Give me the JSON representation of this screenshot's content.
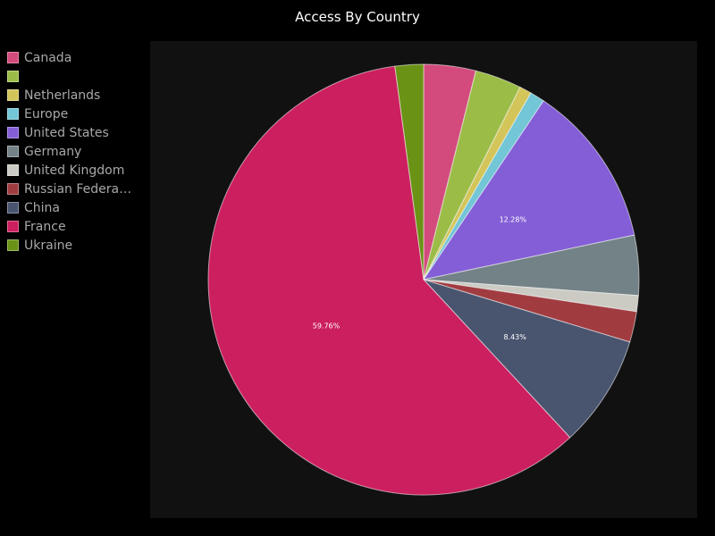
{
  "chart_data": {
    "type": "pie",
    "title": "Access By Country",
    "legend_position": "left",
    "slices": [
      {
        "label": "Canada",
        "value": 3.9,
        "color": "#d24b7c"
      },
      {
        "label": "",
        "value": 3.5,
        "color": "#9bbd48"
      },
      {
        "label": "Netherlands",
        "value": 0.9,
        "color": "#d4c55a"
      },
      {
        "label": "Europe",
        "value": 1.1,
        "color": "#72c6d6"
      },
      {
        "label": "United States",
        "value": 12.28,
        "color": "#845ed6",
        "data_label": "12.28%"
      },
      {
        "label": "Germany",
        "value": 4.5,
        "color": "#738286"
      },
      {
        "label": "United Kingdom",
        "value": 1.2,
        "color": "#cbcbc4"
      },
      {
        "label": "Russian Federation",
        "legend_label": "Russian Federa…",
        "value": 2.3,
        "color": "#a03c40"
      },
      {
        "label": "China",
        "value": 8.43,
        "color": "#49546f",
        "data_label": "8.43%"
      },
      {
        "label": "France",
        "value": 59.76,
        "color": "#cc1f5f",
        "data_label": "59.76%"
      },
      {
        "label": "Ukraine",
        "value": 2.13,
        "color": "#6a9316"
      }
    ]
  }
}
